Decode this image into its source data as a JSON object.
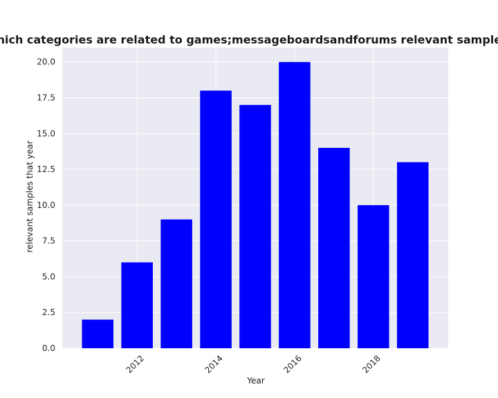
{
  "chart_data": {
    "type": "bar",
    "title": "Percentage of samples in which categories are related to games;messageboardsandforums relevant samples that year in privacy policies",
    "xlabel": "Year",
    "ylabel": "relevant samples that year",
    "x": [
      2011,
      2012,
      2013,
      2014,
      2015,
      2016,
      2017,
      2018,
      2019
    ],
    "values": [
      2,
      6,
      9,
      18,
      17,
      20,
      14,
      10,
      13
    ],
    "xticks": [
      2012,
      2014,
      2016,
      2018
    ],
    "xtick_labels": [
      "2012",
      "2014",
      "2016",
      "2018"
    ],
    "yticks": [
      0,
      2.5,
      5,
      7.5,
      10,
      12.5,
      15,
      17.5,
      20
    ],
    "ytick_labels": [
      "0.0",
      "2.5",
      "5.0",
      "7.5",
      "10.0",
      "12.5",
      "15.0",
      "17.5",
      "20.0"
    ],
    "xlim": [
      2010.1,
      2019.9
    ],
    "ylim": [
      0,
      21
    ],
    "grid": true,
    "bar_color": "#0000ff",
    "background_color": "#eaeaf2",
    "grid_color": "#ffffff"
  }
}
